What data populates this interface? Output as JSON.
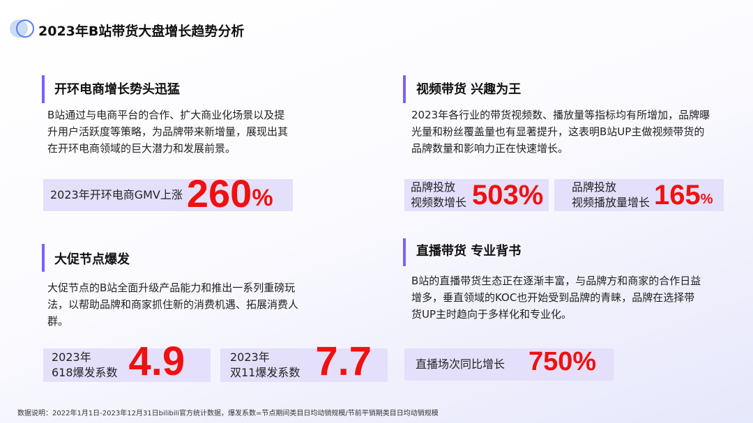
{
  "title": "2023年B站带货大盘增长趋势分析",
  "colors": {
    "accent": "#7b61ff",
    "highlight": "#f01010",
    "box": "#e4dffb"
  },
  "sections": [
    {
      "heading": "开环电商增长势头迅猛",
      "body": "B站通过与电商平台的合作、扩大商业化场景以及提升用户活跃度等策略，为品牌带来新增量，展现出其在开环电商领域的巨大潜力和发展前景。",
      "stats": [
        {
          "label": "2023年开环电商GMV上涨",
          "value": "260",
          "unit": "%"
        }
      ]
    },
    {
      "heading": "视频带货 兴趣为王",
      "body": "2023年各行业的带货视频数、播放量等指标均有所增加，品牌曝光量和粉丝覆盖量也有显著提升，这表明B站UP主做视频带货的品牌数量和影响力正在快速增长。",
      "stats": [
        {
          "label1": "品牌投放",
          "label2": "视频数增长",
          "value": "503%"
        },
        {
          "label1": "品牌投放",
          "label2": "视频播放量增长",
          "value": "165",
          "unit": "%"
        }
      ]
    },
    {
      "heading": "大促节点爆发",
      "body": "大促节点的B站全面升级产品能力和推出一系列重磅玩法，以帮助品牌和商家抓住新的消费机遇、拓展消费人群。",
      "stats": [
        {
          "label1": "2023年",
          "label2": "618爆发系数",
          "value": "4.9"
        },
        {
          "label1": "2023年",
          "label2": "双11爆发系数",
          "value": "7.7"
        }
      ]
    },
    {
      "heading": "直播带货 专业背书",
      "body": "B站的直播带货生态正在逐渐丰富，与品牌方和商家的合作日益增多，垂直领域的KOC也开始受到品牌的青睐，品牌在选择带货UP主时趋向于多样化和专业化。",
      "stats": [
        {
          "label": "直播场次同比增长",
          "value": "750%"
        }
      ]
    }
  ],
  "footnote": "数据说明：2022年1月1日-2023年12月31日bilibili官方统计数据，爆发系数=节点期间类目日均动销规模/节前平销期类目日均动销规模"
}
